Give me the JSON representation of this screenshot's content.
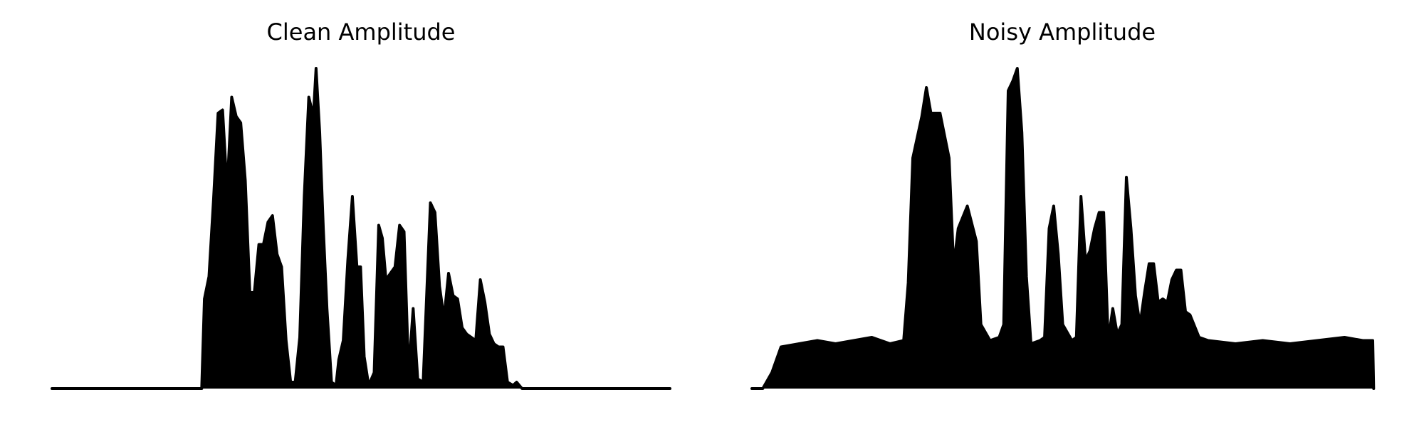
{
  "chart_data": [
    {
      "type": "area",
      "title": "Clean Amplitude",
      "color": "#000000",
      "xlim": [
        0,
        681
      ],
      "ylim": [
        0,
        1
      ],
      "x": [
        0,
        165,
        168,
        173,
        178,
        183,
        188,
        193,
        198,
        203,
        208,
        213,
        218,
        223,
        228,
        233,
        238,
        243,
        248,
        253,
        258,
        263,
        268,
        273,
        278,
        283,
        288,
        291,
        295,
        299,
        303,
        308,
        313,
        316,
        321,
        326,
        331,
        336,
        340,
        344,
        349,
        355,
        360,
        364,
        368,
        373,
        378,
        383,
        388,
        393,
        398,
        403,
        409,
        413,
        417,
        422,
        427,
        432,
        437,
        442,
        447,
        452,
        457,
        462,
        467,
        472,
        477,
        482,
        487,
        492,
        497,
        502,
        508,
        512,
        518,
        681
      ],
      "values": [
        0,
        0,
        0.28,
        0.35,
        0.59,
        0.86,
        0.87,
        0.62,
        0.91,
        0.85,
        0.83,
        0.65,
        0.3,
        0.3,
        0.45,
        0.45,
        0.52,
        0.54,
        0.42,
        0.38,
        0.15,
        0.02,
        0.02,
        0.16,
        0.6,
        0.91,
        0.85,
        1.0,
        0.8,
        0.5,
        0.25,
        0.02,
        0.01,
        0.09,
        0.15,
        0.4,
        0.6,
        0.38,
        0.38,
        0.1,
        0.01,
        0.05,
        0.51,
        0.47,
        0.34,
        0.36,
        0.38,
        0.51,
        0.49,
        0.05,
        0.25,
        0.03,
        0.02,
        0.3,
        0.58,
        0.55,
        0.32,
        0.22,
        0.36,
        0.29,
        0.28,
        0.19,
        0.17,
        0.16,
        0.15,
        0.34,
        0.27,
        0.17,
        0.14,
        0.13,
        0.13,
        0.02,
        0.01,
        0.02,
        0,
        0
      ]
    },
    {
      "type": "area",
      "title": "Noisy Amplitude",
      "color": "#000000",
      "xlim": [
        0,
        683
      ],
      "ylim": [
        0,
        1
      ],
      "x": [
        0,
        12,
        22,
        32,
        52,
        72,
        92,
        112,
        132,
        152,
        167,
        172,
        177,
        187,
        192,
        197,
        207,
        217,
        222,
        227,
        237,
        247,
        252,
        262,
        272,
        277,
        282,
        287,
        292,
        297,
        302,
        307,
        317,
        322,
        327,
        332,
        337,
        342,
        352,
        357,
        362,
        367,
        372,
        377,
        382,
        387,
        392,
        397,
        402,
        407,
        412,
        417,
        422,
        427,
        432,
        437,
        442,
        447,
        452,
        457,
        462,
        467,
        472,
        477,
        482,
        492,
        502,
        532,
        562,
        592,
        622,
        652,
        672,
        683,
        684
      ],
      "values": [
        0,
        0,
        0.05,
        0.13,
        0.14,
        0.15,
        0.14,
        0.15,
        0.16,
        0.14,
        0.15,
        0.33,
        0.72,
        0.85,
        0.94,
        0.86,
        0.86,
        0.72,
        0.38,
        0.5,
        0.57,
        0.46,
        0.2,
        0.15,
        0.16,
        0.2,
        0.93,
        0.96,
        1.0,
        0.8,
        0.35,
        0.14,
        0.15,
        0.16,
        0.5,
        0.57,
        0.42,
        0.2,
        0.15,
        0.16,
        0.6,
        0.4,
        0.43,
        0.5,
        0.55,
        0.55,
        0.15,
        0.25,
        0.17,
        0.2,
        0.66,
        0.5,
        0.29,
        0.2,
        0.3,
        0.39,
        0.39,
        0.27,
        0.28,
        0.27,
        0.34,
        0.37,
        0.37,
        0.24,
        0.23,
        0.16,
        0.15,
        0.14,
        0.15,
        0.14,
        0.15,
        0.16,
        0.15,
        0.15,
        0
      ]
    }
  ]
}
